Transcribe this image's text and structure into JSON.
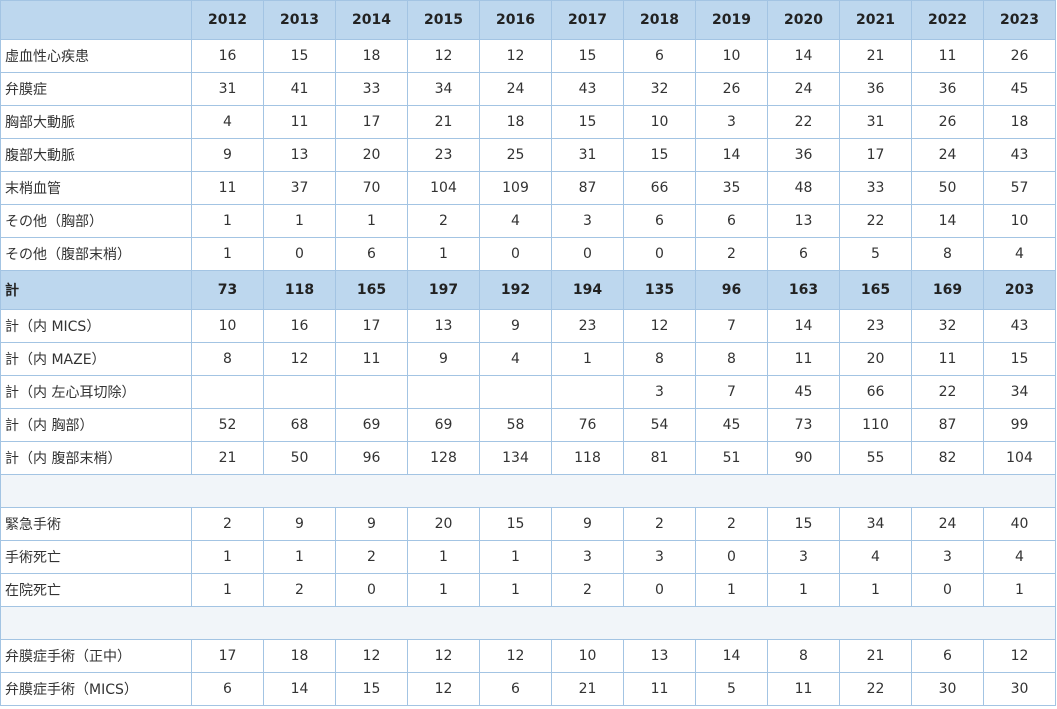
{
  "header": {
    "corner": "",
    "years": [
      "2012",
      "2013",
      "2014",
      "2015",
      "2016",
      "2017",
      "2018",
      "2019",
      "2020",
      "2021",
      "2022",
      "2023"
    ]
  },
  "sections": [
    {
      "rows": [
        {
          "label": "虚血性心疾患",
          "values": [
            "16",
            "15",
            "18",
            "12",
            "12",
            "15",
            "6",
            "10",
            "14",
            "21",
            "11",
            "26"
          ]
        },
        {
          "label": "弁膜症",
          "values": [
            "31",
            "41",
            "33",
            "34",
            "24",
            "43",
            "32",
            "26",
            "24",
            "36",
            "36",
            "45"
          ]
        },
        {
          "label": "胸部大動脈",
          "values": [
            "4",
            "11",
            "17",
            "21",
            "18",
            "15",
            "10",
            "3",
            "22",
            "31",
            "26",
            "18"
          ]
        },
        {
          "label": "腹部大動脈",
          "values": [
            "9",
            "13",
            "20",
            "23",
            "25",
            "31",
            "15",
            "14",
            "36",
            "17",
            "24",
            "43"
          ]
        },
        {
          "label": "末梢血管",
          "values": [
            "11",
            "37",
            "70",
            "104",
            "109",
            "87",
            "66",
            "35",
            "48",
            "33",
            "50",
            "57"
          ]
        },
        {
          "label": "その他（胸部）",
          "values": [
            "1",
            "1",
            "1",
            "2",
            "4",
            "3",
            "6",
            "6",
            "13",
            "22",
            "14",
            "10"
          ]
        },
        {
          "label": "その他（腹部末梢）",
          "values": [
            "1",
            "0",
            "6",
            "1",
            "0",
            "0",
            "0",
            "2",
            "6",
            "5",
            "8",
            "4"
          ]
        }
      ]
    },
    {
      "total": {
        "label": "計",
        "values": [
          "73",
          "118",
          "165",
          "197",
          "192",
          "194",
          "135",
          "96",
          "163",
          "165",
          "169",
          "203"
        ]
      }
    },
    {
      "rows": [
        {
          "label": "計（内 MICS）",
          "values": [
            "10",
            "16",
            "17",
            "13",
            "9",
            "23",
            "12",
            "7",
            "14",
            "23",
            "32",
            "43"
          ]
        },
        {
          "label": "計（内 MAZE）",
          "values": [
            "8",
            "12",
            "11",
            "9",
            "4",
            "1",
            "8",
            "8",
            "11",
            "20",
            "11",
            "15"
          ]
        },
        {
          "label": "計（内 左心耳切除）",
          "values": [
            "",
            "",
            "",
            "",
            "",
            "",
            "3",
            "7",
            "45",
            "66",
            "22",
            "34"
          ]
        },
        {
          "label": "計（内 胸部）",
          "values": [
            "52",
            "68",
            "69",
            "69",
            "58",
            "76",
            "54",
            "45",
            "73",
            "110",
            "87",
            "99"
          ]
        },
        {
          "label": "計（内 腹部末梢）",
          "values": [
            "21",
            "50",
            "96",
            "128",
            "134",
            "118",
            "81",
            "51",
            "90",
            "55",
            "82",
            "104"
          ]
        }
      ]
    },
    {
      "rows": [
        {
          "label": "緊急手術",
          "values": [
            "2",
            "9",
            "9",
            "20",
            "15",
            "9",
            "2",
            "2",
            "15",
            "34",
            "24",
            "40"
          ]
        },
        {
          "label": "手術死亡",
          "values": [
            "1",
            "1",
            "2",
            "1",
            "1",
            "3",
            "3",
            "0",
            "3",
            "4",
            "3",
            "4"
          ]
        },
        {
          "label": "在院死亡",
          "values": [
            "1",
            "2",
            "0",
            "1",
            "1",
            "2",
            "0",
            "1",
            "1",
            "1",
            "0",
            "1"
          ]
        }
      ]
    },
    {
      "rows": [
        {
          "label": "弁膜症手術（正中）",
          "values": [
            "17",
            "18",
            "12",
            "12",
            "12",
            "10",
            "13",
            "14",
            "8",
            "21",
            "6",
            "12"
          ]
        },
        {
          "label": "弁膜症手術（MICS）",
          "values": [
            "6",
            "14",
            "15",
            "12",
            "6",
            "21",
            "11",
            "5",
            "11",
            "22",
            "30",
            "30"
          ]
        }
      ]
    }
  ]
}
